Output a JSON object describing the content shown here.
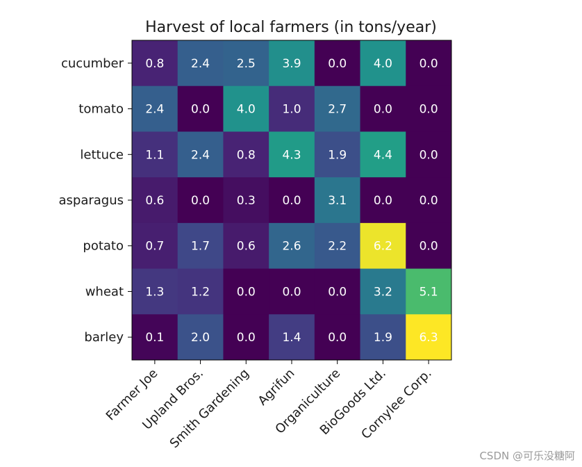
{
  "chart_data": {
    "type": "heatmap",
    "title": "Harvest of local farmers (in tons/year)",
    "xlabel": "",
    "ylabel": "",
    "rows": [
      "cucumber",
      "tomato",
      "lettuce",
      "asparagus",
      "potato",
      "wheat",
      "barley"
    ],
    "columns": [
      "Farmer Joe",
      "Upland Bros.",
      "Smith Gardening",
      "Agrifun",
      "Organiculture",
      "BioGoods Ltd.",
      "Cornylee Corp."
    ],
    "values": [
      [
        0.8,
        2.4,
        2.5,
        3.9,
        0.0,
        4.0,
        0.0
      ],
      [
        2.4,
        0.0,
        4.0,
        1.0,
        2.7,
        0.0,
        0.0
      ],
      [
        1.1,
        2.4,
        0.8,
        4.3,
        1.9,
        4.4,
        0.0
      ],
      [
        0.6,
        0.0,
        0.3,
        0.0,
        3.1,
        0.0,
        0.0
      ],
      [
        0.7,
        1.7,
        0.6,
        2.6,
        2.2,
        6.2,
        0.0
      ],
      [
        1.3,
        1.2,
        0.0,
        0.0,
        0.0,
        3.2,
        5.1
      ],
      [
        0.1,
        2.0,
        0.0,
        1.4,
        0.0,
        1.9,
        6.3
      ]
    ],
    "colormap": "viridis",
    "vmin": 0.0,
    "vmax": 6.3,
    "grid": false,
    "colorbar": false
  },
  "watermark": "CSDN @可乐没糖阿"
}
